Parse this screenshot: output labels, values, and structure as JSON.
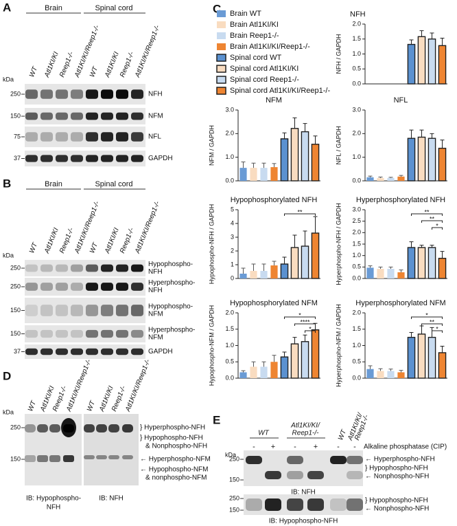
{
  "panels": {
    "a": {
      "label": "A",
      "groups": [
        "Brain",
        "Spinal cord"
      ],
      "lanes": [
        "WT",
        "Atl1KI/KI",
        "Reep1-/-",
        "Atl1KI/KI/Reep1-/-"
      ],
      "unit": "kDa",
      "blots": [
        {
          "marker": 250,
          "name": [
            "NFH"
          ]
        },
        {
          "marker": 150,
          "name": [
            "NFM"
          ]
        },
        {
          "marker": 75,
          "name": [
            "NFL"
          ]
        },
        {
          "marker": 37,
          "name": [
            "GAPDH"
          ]
        }
      ]
    },
    "b": {
      "label": "B",
      "groups": [
        "Brain",
        "Spinal cord"
      ],
      "lanes": [
        "WT",
        "Atl1KI/KI",
        "Reep1-/-",
        "Atl1KI/KI/Reep1-/-"
      ],
      "unit": "kDa",
      "blots": [
        {
          "marker": 250,
          "name": [
            "Hypophospho-",
            "NFH"
          ]
        },
        {
          "marker": 250,
          "name": [
            "Hyperphospho-",
            "NFH"
          ]
        },
        {
          "marker": 150,
          "name": [
            "Hypophospho-",
            "NFM"
          ]
        },
        {
          "marker": 150,
          "name": [
            "Hyperphospho-",
            "NFM"
          ]
        },
        {
          "marker": 37,
          "name": [
            "GAPDH"
          ]
        }
      ]
    },
    "d": {
      "label": "D",
      "lanes": [
        "WT",
        "Atl1KI/KI",
        "Reep1-/-",
        "Atl1KI/KI/Reep1-/-"
      ],
      "unit": "kDa",
      "markers": [
        250,
        150
      ],
      "bands": [
        [
          "} Hyperphospho-NFH"
        ],
        [
          "} Hypophospho-NFH",
          "& Nonphospho-NFH"
        ],
        [
          "← Hyperphospho-NFM"
        ],
        [
          "← Hypophospho-NFM",
          "& nonphospho-NFM"
        ]
      ],
      "captions": [
        [
          "IB: Hypophospho-",
          "NFH"
        ],
        [
          "IB: NFH"
        ]
      ]
    },
    "e": {
      "label": "E",
      "groups": [
        [
          "WT"
        ],
        [
          "Atl1KI/KI/",
          "Reep1-/-"
        ]
      ],
      "rotated": [
        [
          "WT"
        ],
        [
          "Atl1KI/KI/",
          "Reep1-/-"
        ]
      ],
      "signs": [
        "-",
        "+",
        "-",
        "+",
        "-",
        "-"
      ],
      "treatment": "Alkaline phosphatase (CIP)",
      "unit": "kDa",
      "blots": [
        {
          "markers": [
            250,
            150
          ],
          "bands": [
            "← Hyperphospho-NFH",
            "} Hypophospho-NFH",
            "← Nonphospho-NFH"
          ],
          "caption": "IB: NFH"
        },
        {
          "markers": [
            250,
            150
          ],
          "bands": [
            "} Hypophospho-NFH",
            "← Nonphospho-NFH"
          ],
          "caption": "IB: Hypophospho-NFH"
        }
      ]
    }
  },
  "chart_data": [
    {
      "type": "bar",
      "panel": "C",
      "title": "NFH",
      "ylabel": "NFH / GAPDH",
      "ylim": [
        0,
        2
      ],
      "yticks": [
        {
          "value": 0,
          "label": "0.0"
        },
        0.5,
        {
          "value": 1,
          "label": "1.0"
        },
        1.5,
        {
          "value": 2,
          "label": "2.0"
        }
      ],
      "values": [
        null,
        null,
        null,
        null,
        1.32,
        1.58,
        1.5,
        1.28
      ],
      "errors": [
        null,
        null,
        null,
        null,
        0.15,
        0.2,
        0.2,
        0.25
      ],
      "legend": [
        {
          "name": "Brain WT",
          "color": "#6a9bd5"
        },
        {
          "name": "Brain Atl1KI/KI",
          "color": "#f9dcc0"
        },
        {
          "name": "Brain Reep1-/-",
          "color": "#c8dbf0"
        },
        {
          "name": "Brain Atl1KI/KI/Reep1-/-",
          "color": "#ee8532"
        },
        {
          "name": "Spinal cord WT",
          "color": "#5b91d0",
          "border": "#1f1f1f"
        },
        {
          "name": "Spinal cord Atl1KI/KI",
          "color": "#f9dcc0",
          "border": "#1f1f1f"
        },
        {
          "name": "Spinal cord Reep1-/-",
          "color": "#c8dbf0",
          "border": "#1f1f1f"
        },
        {
          "name": "Spinal cord Atl1KI/KI/Reep1-/-",
          "color": "#ee8532",
          "border": "#1f1f1f"
        }
      ]
    },
    {
      "type": "bar",
      "title": "NFM",
      "ylabel": "NFM / GAPDH",
      "ylim": [
        0,
        3
      ],
      "yticks": [
        {
          "value": 0,
          "label": "0.0"
        },
        {
          "value": 1,
          "label": "1.0"
        },
        {
          "value": 2,
          "label": "2.0"
        },
        {
          "value": 3,
          "label": "3.0"
        }
      ],
      "values": [
        0.55,
        0.55,
        0.55,
        0.58,
        1.78,
        2.22,
        2.08,
        1.55
      ],
      "errors": [
        0.25,
        0.2,
        0.2,
        0.15,
        0.25,
        0.45,
        0.35,
        0.35
      ]
    },
    {
      "type": "bar",
      "title": "NFL",
      "ylabel": "NFL / GAPDH",
      "ylim": [
        0,
        3
      ],
      "yticks": [
        {
          "value": 0,
          "label": "0.0"
        },
        {
          "value": 1,
          "label": "1.0"
        },
        {
          "value": 2,
          "label": "2.0"
        },
        {
          "value": 3,
          "label": "3.0"
        }
      ],
      "values": [
        0.15,
        0.12,
        0.12,
        0.18,
        1.8,
        1.85,
        1.8,
        1.38
      ],
      "errors": [
        0.05,
        0.04,
        0.03,
        0.05,
        0.35,
        0.3,
        0.2,
        0.35
      ]
    },
    {
      "type": "bar",
      "title": "Hypophosphorylated NFH",
      "ylabel": "Hypophospho-NFH / GAPDH",
      "ylim": [
        0,
        5
      ],
      "yticks": [
        0,
        1,
        2,
        3,
        4,
        5
      ],
      "values": [
        0.35,
        0.55,
        0.55,
        0.95,
        1.05,
        2.25,
        2.35,
        3.3
      ],
      "errors": [
        0.4,
        0.5,
        0.5,
        0.3,
        0.5,
        0.9,
        1.1,
        1.2
      ],
      "annotations": [
        {
          "text": "**",
          "from": 4,
          "to": 7
        }
      ]
    },
    {
      "type": "bar",
      "title": "Hyperphosphorylated NFH",
      "ylabel": "Hyperphospho-NFH / GAPDH",
      "ylim": [
        0,
        3
      ],
      "yticks": [
        {
          "value": 0,
          "label": "0.0"
        },
        0.5,
        {
          "value": 1,
          "label": "1.0"
        },
        1.5,
        {
          "value": 2,
          "label": "2.0"
        },
        2.5,
        {
          "value": 3,
          "label": "3.0"
        }
      ],
      "values": [
        0.47,
        0.42,
        0.42,
        0.27,
        1.35,
        1.35,
        1.35,
        0.88
      ],
      "errors": [
        0.08,
        0.08,
        0.08,
        0.1,
        0.25,
        0.1,
        0.1,
        0.3
      ],
      "annotations": [
        {
          "text": "**",
          "from": 4,
          "to": 7
        },
        {
          "text": "**",
          "from": 5,
          "to": 7
        },
        {
          "text": "*",
          "from": 6,
          "to": 7
        }
      ]
    },
    {
      "type": "bar",
      "title": "Hypophosphorylated NFM",
      "ylabel": "Hypophospho-NFM / GAPDH",
      "ylim": [
        0,
        2
      ],
      "yticks": [
        {
          "value": 0,
          "label": "0.0"
        },
        0.5,
        {
          "value": 1,
          "label": "1.0"
        },
        1.5,
        {
          "value": 2,
          "label": "2.0"
        }
      ],
      "values": [
        0.18,
        0.35,
        0.35,
        0.5,
        0.65,
        1.05,
        1.12,
        1.48
      ],
      "errors": [
        0.05,
        0.15,
        0.15,
        0.2,
        0.15,
        0.2,
        0.2,
        0.2
      ],
      "annotations": [
        {
          "text": "*",
          "from": 4,
          "to": 7
        },
        {
          "text": "****",
          "from": 5,
          "to": 7
        },
        {
          "text": "*",
          "from": 6,
          "to": 7
        }
      ]
    },
    {
      "type": "bar",
      "title": "Hyperphosphorylated NFM",
      "ylabel": "Hyperphospho-NFM / GAPDH",
      "ylim": [
        0,
        2
      ],
      "yticks": [
        {
          "value": 0,
          "label": "0.0"
        },
        0.5,
        {
          "value": 1,
          "label": "1.0"
        },
        1.5,
        {
          "value": 2,
          "label": "2.0"
        }
      ],
      "values": [
        0.28,
        0.22,
        0.22,
        0.18,
        1.25,
        1.35,
        1.25,
        0.78
      ],
      "errors": [
        0.1,
        0.07,
        0.06,
        0.06,
        0.15,
        0.25,
        0.3,
        0.2
      ],
      "annotations": [
        {
          "text": "*",
          "from": 4,
          "to": 7
        },
        {
          "text": "**",
          "from": 5,
          "to": 7
        },
        {
          "text": "*",
          "from": 6,
          "to": 7
        }
      ]
    }
  ]
}
